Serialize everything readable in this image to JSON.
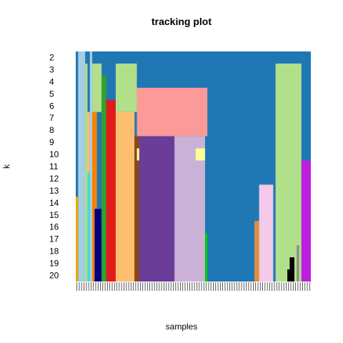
{
  "chart_data": {
    "type": "heatmap",
    "title": "tracking plot",
    "xlabel": "samples",
    "ylabel": "k",
    "y_categories": [
      "2",
      "3",
      "4",
      "5",
      "6",
      "7",
      "8",
      "9",
      "10",
      "11",
      "12",
      "13",
      "14",
      "15",
      "16",
      "17",
      "18",
      "19",
      "20"
    ],
    "n_samples": 100,
    "background_color": "#1F78B4",
    "tiles": [
      {
        "k_from": "2",
        "k_to": "20",
        "s_from": 2,
        "s_to": 4,
        "color": "#A6CEE3"
      },
      {
        "k_from": "14",
        "k_to": "20",
        "s_from": 1,
        "s_to": 1,
        "color": "#E6AB02"
      },
      {
        "k_from": "3",
        "k_to": "20",
        "s_from": 5,
        "s_to": 5,
        "color": "#B2DF8A"
      },
      {
        "k_from": "7",
        "k_to": "11",
        "s_from": 6,
        "s_to": 6,
        "color": "#FDBF6F"
      },
      {
        "k_from": "12",
        "k_to": "20",
        "s_from": 6,
        "s_to": 6,
        "color": "#40E0D0"
      },
      {
        "k_from": "2",
        "k_to": "20",
        "s_from": 7,
        "s_to": 7,
        "color": "#A6CEE3"
      },
      {
        "k_from": "3",
        "k_to": "6",
        "s_from": 8,
        "s_to": 11,
        "color": "#B2DF8A"
      },
      {
        "k_from": "7",
        "k_to": "20",
        "s_from": 8,
        "s_to": 9,
        "color": "#FF7F00"
      },
      {
        "k_from": "15",
        "k_to": "20",
        "s_from": 9,
        "s_to": 11,
        "color": "#000080"
      },
      {
        "k_from": "4",
        "k_to": "20",
        "s_from": 12,
        "s_to": 13,
        "color": "#33A02C"
      },
      {
        "k_from": "6",
        "k_to": "20",
        "s_from": 14,
        "s_to": 17,
        "color": "#E31A1C"
      },
      {
        "k_from": "3",
        "k_to": "6",
        "s_from": 18,
        "s_to": 26,
        "color": "#B2DF8A"
      },
      {
        "k_from": "7",
        "k_to": "20",
        "s_from": 18,
        "s_to": 25,
        "color": "#FDBF6F"
      },
      {
        "k_from": "5",
        "k_to": "8",
        "s_from": 27,
        "s_to": 56,
        "color": "#FB9A99"
      },
      {
        "k_from": "9",
        "k_to": "20",
        "s_from": 26,
        "s_to": 27,
        "color": "#8B4513"
      },
      {
        "k_from": "9",
        "k_to": "20",
        "s_from": 28,
        "s_to": 42,
        "color": "#6A3D9A"
      },
      {
        "k_from": "9",
        "k_to": "20",
        "s_from": 43,
        "s_to": 55,
        "color": "#CAB2D6"
      },
      {
        "k_from": "10",
        "k_to": "10",
        "s_from": 27,
        "s_to": 27,
        "color": "#FFFF99"
      },
      {
        "k_from": "10",
        "k_to": "10",
        "s_from": 52,
        "s_to": 55,
        "color": "#FFFF99"
      },
      {
        "k_from": "17",
        "k_to": "20",
        "s_from": 56,
        "s_to": 56,
        "color": "#00CC00"
      },
      {
        "k_from": "16",
        "k_to": "20",
        "s_from": 77,
        "s_to": 78,
        "color": "#E08E3C"
      },
      {
        "k_from": "13",
        "k_to": "20",
        "s_from": 79,
        "s_to": 84,
        "color": "#F4C8E8"
      },
      {
        "k_from": "3",
        "k_to": "20",
        "s_from": 86,
        "s_to": 96,
        "color": "#B2DF8A"
      },
      {
        "k_from": "19",
        "k_to": "20",
        "s_from": 92,
        "s_to": 93,
        "color": "#000000"
      },
      {
        "k_from": "20",
        "k_to": "20",
        "s_from": 91,
        "s_to": 92,
        "color": "#000000"
      },
      {
        "k_from": "18",
        "k_to": "20",
        "s_from": 95,
        "s_to": 95,
        "color": "#8C8C8C"
      },
      {
        "k_from": "11",
        "k_to": "20",
        "s_from": 97,
        "s_to": 100,
        "color": "#BE1EE0"
      }
    ]
  }
}
